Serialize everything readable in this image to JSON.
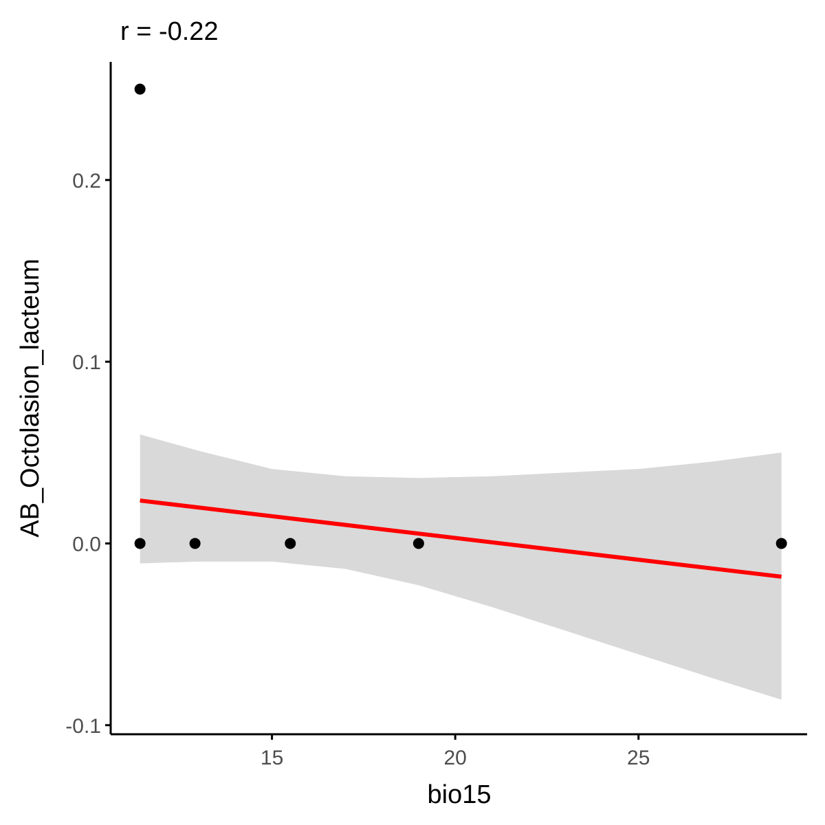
{
  "chart_data": {
    "type": "scatter",
    "title": "r = -0.22",
    "xlabel": "bio15",
    "ylabel": "AB_Octolasion_lacteum",
    "xlim": [
      10.6,
      29.6
    ],
    "ylim": [
      -0.105,
      0.265
    ],
    "x_ticks": [
      15,
      20,
      25
    ],
    "x_tick_labels": [
      "15",
      "20",
      "25"
    ],
    "y_ticks": [
      -0.1,
      0.0,
      0.1,
      0.2
    ],
    "y_tick_labels": [
      "-0.1",
      "0.0",
      "0.1",
      "0.2"
    ],
    "grid": false,
    "points": [
      {
        "x": 11.4,
        "y": 0.25
      },
      {
        "x": 11.4,
        "y": 0.0
      },
      {
        "x": 12.9,
        "y": 0.0
      },
      {
        "x": 15.5,
        "y": 0.0
      },
      {
        "x": 19.0,
        "y": 0.0
      },
      {
        "x": 28.9,
        "y": 0.0
      }
    ],
    "fit_line": {
      "x": [
        11.4,
        28.9
      ],
      "y": [
        0.0236,
        -0.0183
      ]
    },
    "confidence_band": {
      "x": [
        11.4,
        13.0,
        15.0,
        17.0,
        19.0,
        21.0,
        23.0,
        25.0,
        27.0,
        28.9
      ],
      "upper": [
        0.06,
        0.051,
        0.041,
        0.037,
        0.036,
        0.037,
        0.039,
        0.041,
        0.045,
        0.05
      ],
      "lower": [
        -0.011,
        -0.01,
        -0.01,
        -0.014,
        -0.023,
        -0.035,
        -0.048,
        -0.061,
        -0.074,
        -0.086
      ]
    },
    "colors": {
      "points": "#000000",
      "fit_line": "#ff0000",
      "band": "#d9d9d9",
      "axis": "#000000",
      "tick_label": "#4d4d4d"
    }
  }
}
